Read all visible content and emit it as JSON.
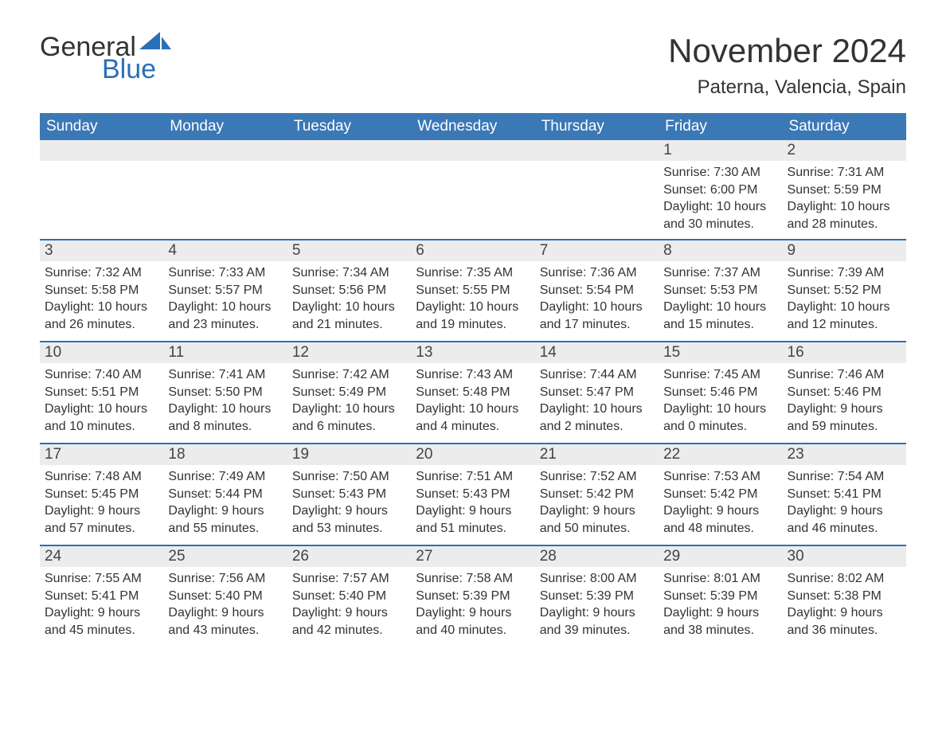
{
  "logo": {
    "text_general": "General",
    "text_blue": "Blue",
    "sail_color": "#2a70b8"
  },
  "title": {
    "month": "November 2024",
    "location": "Paterna, Valencia, Spain"
  },
  "colors": {
    "header_bg": "#3b78b6",
    "header_text": "#ffffff",
    "daynum_bg": "#ececec",
    "border": "#2a70b8",
    "text": "#333333",
    "page_bg": "#ffffff"
  },
  "typography": {
    "title_fontsize": 42,
    "location_fontsize": 24,
    "header_fontsize": 19,
    "daynum_fontsize": 19,
    "body_fontsize": 16,
    "font_family": "Arial"
  },
  "layout": {
    "columns": 7,
    "rows": 5,
    "first_day_column": 5
  },
  "weekdays": [
    "Sunday",
    "Monday",
    "Tuesday",
    "Wednesday",
    "Thursday",
    "Friday",
    "Saturday"
  ],
  "days": [
    {
      "n": 1,
      "sunrise": "7:30 AM",
      "sunset": "6:00 PM",
      "daylight": "10 hours and 30 minutes."
    },
    {
      "n": 2,
      "sunrise": "7:31 AM",
      "sunset": "5:59 PM",
      "daylight": "10 hours and 28 minutes."
    },
    {
      "n": 3,
      "sunrise": "7:32 AM",
      "sunset": "5:58 PM",
      "daylight": "10 hours and 26 minutes."
    },
    {
      "n": 4,
      "sunrise": "7:33 AM",
      "sunset": "5:57 PM",
      "daylight": "10 hours and 23 minutes."
    },
    {
      "n": 5,
      "sunrise": "7:34 AM",
      "sunset": "5:56 PM",
      "daylight": "10 hours and 21 minutes."
    },
    {
      "n": 6,
      "sunrise": "7:35 AM",
      "sunset": "5:55 PM",
      "daylight": "10 hours and 19 minutes."
    },
    {
      "n": 7,
      "sunrise": "7:36 AM",
      "sunset": "5:54 PM",
      "daylight": "10 hours and 17 minutes."
    },
    {
      "n": 8,
      "sunrise": "7:37 AM",
      "sunset": "5:53 PM",
      "daylight": "10 hours and 15 minutes."
    },
    {
      "n": 9,
      "sunrise": "7:39 AM",
      "sunset": "5:52 PM",
      "daylight": "10 hours and 12 minutes."
    },
    {
      "n": 10,
      "sunrise": "7:40 AM",
      "sunset": "5:51 PM",
      "daylight": "10 hours and 10 minutes."
    },
    {
      "n": 11,
      "sunrise": "7:41 AM",
      "sunset": "5:50 PM",
      "daylight": "10 hours and 8 minutes."
    },
    {
      "n": 12,
      "sunrise": "7:42 AM",
      "sunset": "5:49 PM",
      "daylight": "10 hours and 6 minutes."
    },
    {
      "n": 13,
      "sunrise": "7:43 AM",
      "sunset": "5:48 PM",
      "daylight": "10 hours and 4 minutes."
    },
    {
      "n": 14,
      "sunrise": "7:44 AM",
      "sunset": "5:47 PM",
      "daylight": "10 hours and 2 minutes."
    },
    {
      "n": 15,
      "sunrise": "7:45 AM",
      "sunset": "5:46 PM",
      "daylight": "10 hours and 0 minutes."
    },
    {
      "n": 16,
      "sunrise": "7:46 AM",
      "sunset": "5:46 PM",
      "daylight": "9 hours and 59 minutes."
    },
    {
      "n": 17,
      "sunrise": "7:48 AM",
      "sunset": "5:45 PM",
      "daylight": "9 hours and 57 minutes."
    },
    {
      "n": 18,
      "sunrise": "7:49 AM",
      "sunset": "5:44 PM",
      "daylight": "9 hours and 55 minutes."
    },
    {
      "n": 19,
      "sunrise": "7:50 AM",
      "sunset": "5:43 PM",
      "daylight": "9 hours and 53 minutes."
    },
    {
      "n": 20,
      "sunrise": "7:51 AM",
      "sunset": "5:43 PM",
      "daylight": "9 hours and 51 minutes."
    },
    {
      "n": 21,
      "sunrise": "7:52 AM",
      "sunset": "5:42 PM",
      "daylight": "9 hours and 50 minutes."
    },
    {
      "n": 22,
      "sunrise": "7:53 AM",
      "sunset": "5:42 PM",
      "daylight": "9 hours and 48 minutes."
    },
    {
      "n": 23,
      "sunrise": "7:54 AM",
      "sunset": "5:41 PM",
      "daylight": "9 hours and 46 minutes."
    },
    {
      "n": 24,
      "sunrise": "7:55 AM",
      "sunset": "5:41 PM",
      "daylight": "9 hours and 45 minutes."
    },
    {
      "n": 25,
      "sunrise": "7:56 AM",
      "sunset": "5:40 PM",
      "daylight": "9 hours and 43 minutes."
    },
    {
      "n": 26,
      "sunrise": "7:57 AM",
      "sunset": "5:40 PM",
      "daylight": "9 hours and 42 minutes."
    },
    {
      "n": 27,
      "sunrise": "7:58 AM",
      "sunset": "5:39 PM",
      "daylight": "9 hours and 40 minutes."
    },
    {
      "n": 28,
      "sunrise": "8:00 AM",
      "sunset": "5:39 PM",
      "daylight": "9 hours and 39 minutes."
    },
    {
      "n": 29,
      "sunrise": "8:01 AM",
      "sunset": "5:39 PM",
      "daylight": "9 hours and 38 minutes."
    },
    {
      "n": 30,
      "sunrise": "8:02 AM",
      "sunset": "5:38 PM",
      "daylight": "9 hours and 36 minutes."
    }
  ],
  "labels": {
    "sunrise_prefix": "Sunrise: ",
    "sunset_prefix": "Sunset: ",
    "daylight_prefix": "Daylight: "
  }
}
